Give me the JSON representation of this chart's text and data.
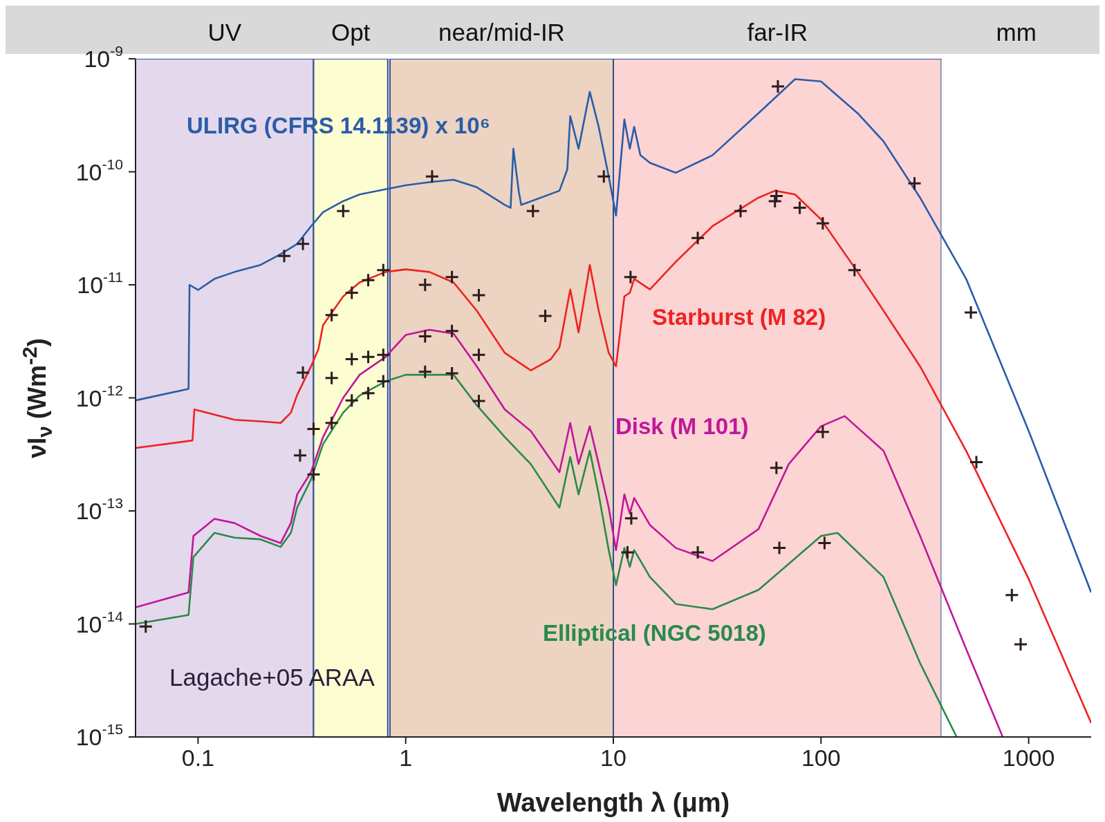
{
  "chart_data": {
    "type": "line",
    "xlabel": "Wavelength λ (μm)",
    "ylabel": "νI$_{ν}$ (Wm$^{-2}$)",
    "log": "xy",
    "xlim": [
      0.05,
      2000
    ],
    "ylim": [
      1e-15,
      1e-09
    ],
    "xticks": [
      0.1,
      1,
      10,
      100,
      1000
    ],
    "yticks": [
      {
        "value": 1e-09,
        "label": "10$^{-9}$"
      },
      {
        "value": 1e-10,
        "label": "10$^{-10}$"
      },
      {
        "value": 1e-11,
        "label": "10$^{-11}$"
      },
      {
        "value": 1e-12,
        "label": "10$^{-12}$"
      },
      {
        "value": 1e-13,
        "label": "10$^{-13}$"
      },
      {
        "value": 1e-14,
        "label": "10$^{-14}$"
      },
      {
        "value": 1e-15,
        "label": "10$^{-15}$"
      }
    ],
    "legend": false,
    "marker": "none",
    "line_style": "solid",
    "bands": [
      {
        "axis": "x",
        "from": 0.05,
        "to": 0.36,
        "label": "UV",
        "color": "#e4d8ec"
      },
      {
        "axis": "x",
        "from": 0.36,
        "to": 0.82,
        "label": "Opt",
        "color": "#fdfdd2"
      },
      {
        "axis": "x",
        "from": 0.84,
        "to": 10,
        "label": "near/mid-IR",
        "color": "#ecd3c2"
      },
      {
        "axis": "x",
        "from": 10,
        "to": 380,
        "label": "far-IR",
        "color": "#fcd4d4"
      },
      {
        "axis": "x",
        "from": 380,
        "to": 2000,
        "label": "mm",
        "color": "#ffffff"
      }
    ],
    "annotations": [
      "Lagache+05 ARAA"
    ],
    "series": [
      {
        "name": "ULIRG (CFRS 14.1139) x 10⁶",
        "color": "#2a5ca8",
        "x": [
          0.05,
          0.09,
          0.091,
          0.1,
          0.12,
          0.15,
          0.2,
          0.25,
          0.3,
          0.35,
          0.4,
          0.5,
          0.6,
          0.8,
          1,
          1.3,
          1.7,
          2.2,
          3,
          3.2,
          3.3,
          3.5,
          3.6,
          5.5,
          6,
          6.2,
          6.8,
          7.7,
          8.5,
          9.5,
          10.3,
          11.3,
          12,
          12.6,
          13.5,
          15,
          20,
          30,
          50,
          75,
          100,
          150,
          200,
          300,
          500,
          1000,
          2000
        ],
        "values": [
          9.5e-13,
          1.2e-12,
          1e-11,
          9e-12,
          1.13e-11,
          1.3e-11,
          1.5e-11,
          1.87e-11,
          2.3e-11,
          3.3e-11,
          4.4e-11,
          5.5e-11,
          6.3e-11,
          7e-11,
          7.6e-11,
          8.1e-11,
          8.5e-11,
          7.3e-11,
          5.1e-11,
          4.8e-11,
          1.6e-10,
          6.8e-11,
          5.1e-11,
          6.8e-11,
          1.05e-10,
          3.1e-10,
          1.6e-10,
          5.1e-10,
          2.5e-10,
          9.1e-11,
          4.1e-11,
          2.9e-10,
          1.6e-10,
          2.5e-10,
          1.4e-10,
          1.2e-10,
          9.8e-11,
          1.4e-10,
          3.3e-10,
          6.6e-10,
          6.3e-10,
          3.3e-10,
          1.86e-10,
          5.9e-11,
          1.13e-11,
          5.1e-13,
          1.9e-14
        ]
      },
      {
        "name": "Starburst (M 82)",
        "color": "#ee2222",
        "x": [
          0.05,
          0.094,
          0.096,
          0.15,
          0.2,
          0.25,
          0.28,
          0.3,
          0.35,
          0.38,
          0.4,
          0.5,
          0.6,
          0.8,
          1,
          1.3,
          1.7,
          2.2,
          3,
          4,
          5,
          5.5,
          6.2,
          6.8,
          7.7,
          8.5,
          9.5,
          10.3,
          11.3,
          12,
          12.6,
          15,
          20,
          30,
          50,
          60,
          75,
          100,
          150,
          200,
          300,
          500,
          1000,
          2000
        ],
        "values": [
          3.6e-13,
          4.2e-13,
          7.9e-13,
          6.4e-13,
          6.2e-13,
          6e-13,
          7.4e-13,
          1.06e-12,
          1.9e-12,
          2.7e-12,
          4.4e-12,
          7.9e-12,
          1.05e-11,
          1.3e-11,
          1.37e-11,
          1.3e-11,
          1.05e-11,
          5.9e-12,
          2.5e-12,
          1.75e-12,
          2.2e-12,
          2.8e-12,
          9.1e-12,
          3.8e-12,
          1.5e-11,
          5.9e-12,
          2.5e-12,
          1.9e-12,
          7.9e-12,
          8.5e-12,
          1.13e-11,
          9.1e-12,
          1.6e-11,
          3.3e-11,
          5.9e-11,
          6.8e-11,
          6.3e-11,
          3.8e-11,
          1.3e-11,
          5.9e-12,
          1.9e-12,
          3.4e-13,
          2.5e-14,
          1.33e-15
        ]
      },
      {
        "name": "Disk (M 101)",
        "color": "#c0179a",
        "x": [
          0.05,
          0.09,
          0.095,
          0.12,
          0.15,
          0.2,
          0.25,
          0.28,
          0.3,
          0.35,
          0.4,
          0.5,
          0.6,
          0.8,
          1,
          1.3,
          1.7,
          2.2,
          3,
          4,
          5.5,
          6.2,
          6.8,
          7.7,
          8.5,
          9.5,
          10.3,
          11.3,
          12,
          12.6,
          15,
          20,
          30,
          50,
          70,
          100,
          130,
          200,
          300,
          500,
          750
        ],
        "values": [
          1.4e-14,
          1.9e-14,
          6e-14,
          8.5e-14,
          7.8e-14,
          6e-14,
          5.2e-14,
          7.8e-14,
          1.4e-13,
          2.2e-13,
          4.5e-13,
          1e-12,
          1.6e-12,
          2.3e-12,
          3.6e-12,
          4e-12,
          3.7e-12,
          1.9e-12,
          7.9e-13,
          5.1e-13,
          2.2e-13,
          6e-13,
          2.6e-13,
          5.6e-13,
          2.6e-13,
          1.07e-13,
          4.5e-14,
          1.4e-13,
          9.5e-14,
          1.3e-13,
          7.5e-14,
          4.7e-14,
          3.6e-14,
          6.9e-14,
          2.6e-13,
          5.6e-13,
          6.9e-13,
          3.4e-13,
          6e-14,
          6e-15,
          1e-15
        ]
      },
      {
        "name": "Elliptical (NGC 5018)",
        "color": "#2a8a4a",
        "x": [
          0.05,
          0.09,
          0.095,
          0.12,
          0.15,
          0.2,
          0.25,
          0.28,
          0.3,
          0.35,
          0.4,
          0.5,
          0.6,
          0.8,
          1,
          1.7,
          2.2,
          3,
          4,
          5.5,
          6.2,
          6.8,
          7.7,
          8.5,
          9.5,
          10.3,
          11.3,
          12,
          12.6,
          15,
          20,
          30,
          50,
          70,
          100,
          120,
          200,
          300,
          450
        ],
        "values": [
          1e-14,
          1.2e-14,
          3.9e-14,
          6.4e-14,
          5.8e-14,
          5.6e-14,
          4.8e-14,
          6.4e-14,
          1.07e-13,
          1.9e-13,
          3.9e-13,
          7.4e-13,
          1.05e-12,
          1.4e-12,
          1.6e-12,
          1.6e-12,
          8.6e-13,
          4.5e-13,
          2.6e-13,
          1.07e-13,
          3e-13,
          1.4e-13,
          3.4e-13,
          1.4e-13,
          4.5e-14,
          2.2e-14,
          4.7e-14,
          3.2e-14,
          4.5e-14,
          2.6e-14,
          1.5e-14,
          1.35e-14,
          2e-14,
          3.4e-14,
          6e-14,
          6.4e-14,
          2.6e-14,
          4.5e-15,
          1e-15
        ]
      },
      {
        "type": "scatter",
        "marker": "cross",
        "color": "#2b1d1d",
        "x": [
          0.26,
          0.32,
          0.5,
          1.34,
          4.1,
          9,
          62,
          282,
          527
        ],
        "values": [
          1.8e-11,
          2.3e-11,
          4.5e-11,
          9.1e-11,
          4.5e-11,
          9.1e-11,
          5.7e-10,
          7.9e-11,
          5.7e-12
        ]
      },
      {
        "type": "scatter",
        "marker": "cross",
        "color": "#2b1d1d",
        "x": [
          0.32,
          0.44,
          0.55,
          0.66,
          0.78,
          1.24,
          1.67,
          2.25,
          4.7,
          12.1,
          25.5,
          41,
          60,
          61,
          79,
          102,
          145,
          560,
          830,
          915
        ],
        "values": [
          1.67e-12,
          5.4e-12,
          8.5e-12,
          1.1e-11,
          1.35e-11,
          1e-11,
          1.17e-11,
          8.1e-12,
          5.3e-12,
          1.17e-11,
          2.6e-11,
          4.5e-11,
          5.5e-11,
          6.1e-11,
          4.8e-11,
          3.5e-11,
          1.35e-11,
          2.7e-13,
          1.8e-14,
          6.6e-15
        ]
      },
      {
        "type": "scatter",
        "marker": "cross",
        "color": "#2b1d1d",
        "x": [
          0.31,
          0.36,
          0.44,
          0.55,
          0.66,
          0.78,
          1.24,
          1.67,
          2.25,
          12.2,
          25.5,
          61,
          102
        ],
        "values": [
          3.1e-13,
          5.3e-13,
          1.5e-12,
          2.2e-12,
          2.3e-12,
          2.4e-12,
          3.5e-12,
          3.9e-12,
          2.4e-12,
          8.6e-14,
          4.3e-14,
          2.4e-13,
          5e-13
        ]
      },
      {
        "type": "scatter",
        "marker": "cross",
        "color": "#2b1d1d",
        "x": [
          0.056,
          0.36,
          0.44,
          0.55,
          0.66,
          0.78,
          1.24,
          1.67,
          2.25,
          11.7,
          63,
          104
        ],
        "values": [
          9.5e-15,
          2.1e-13,
          6e-13,
          9.5e-13,
          1.1e-12,
          1.4e-12,
          1.7e-12,
          1.65e-12,
          9.4e-13,
          4.3e-14,
          4.7e-14,
          5.2e-14
        ]
      }
    ]
  }
}
